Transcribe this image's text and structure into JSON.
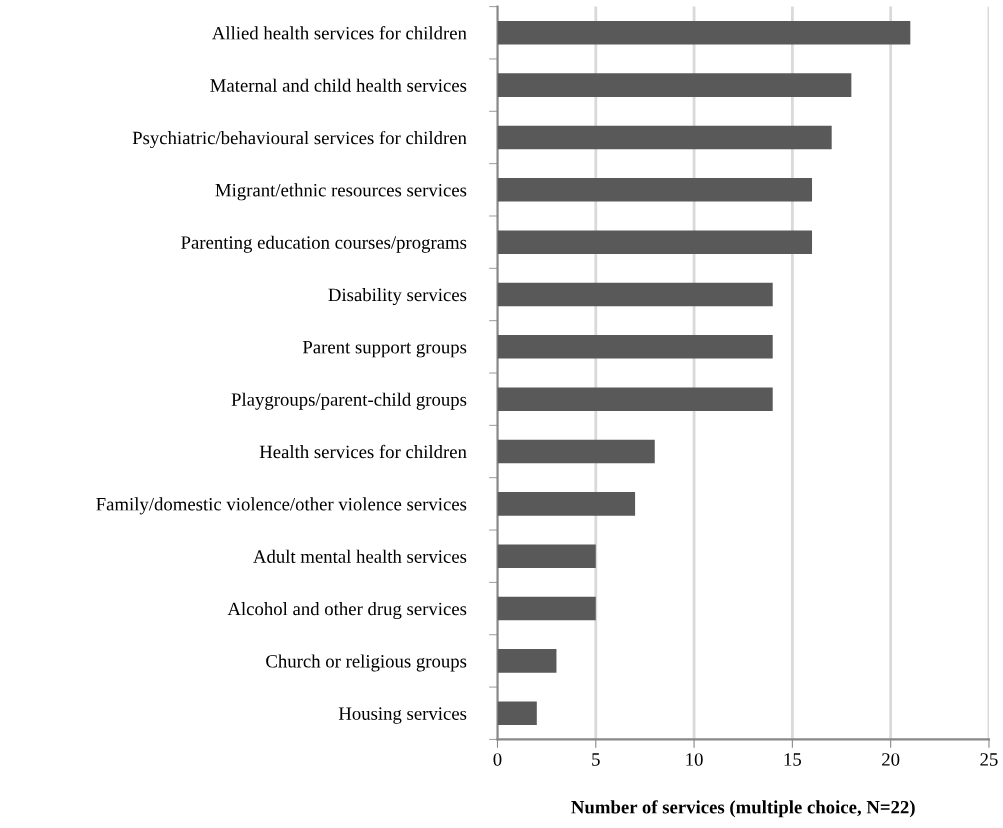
{
  "chart_data": {
    "type": "bar",
    "orientation": "horizontal",
    "xlabel": "Number of services (multiple choice, N=22)",
    "categories": [
      "Allied health services for children",
      "Maternal and child health services",
      "Psychiatric/behavioural services for children",
      "Migrant/ethnic resources services",
      "Parenting education courses/programs",
      "Disability services",
      "Parent support groups",
      "Playgroups/parent-child groups",
      "Health services for children",
      "Family/domestic violence/other violence services",
      "Adult mental health services",
      "Alcohol and other drug services",
      "Church or religious groups",
      "Housing services"
    ],
    "values": [
      21,
      18,
      17,
      16,
      16,
      14,
      14,
      14,
      8,
      7,
      5,
      5,
      3,
      2
    ],
    "color": "#595959",
    "xlim": [
      0,
      25
    ],
    "xticks": [
      0,
      5,
      10,
      15,
      20,
      25
    ],
    "grid": "x",
    "legend": false
  }
}
